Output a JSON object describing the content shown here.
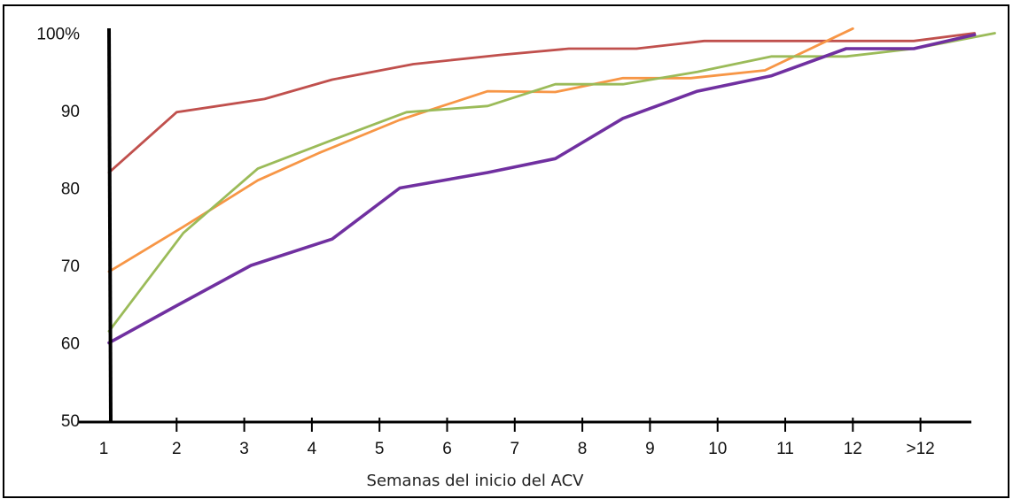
{
  "chart_data": {
    "type": "line",
    "title": "",
    "xlabel": "Semanas del inicio del ACV",
    "ylabel": "",
    "categories": [
      "1",
      "2",
      "3",
      "4",
      "5",
      "6",
      "7",
      "8",
      "9",
      "10",
      "11",
      "12",
      ">12"
    ],
    "y_tick_labels": [
      "50",
      "60",
      "70",
      "80",
      "90",
      "100%"
    ],
    "ylim": [
      50,
      100
    ],
    "grid": false,
    "legend": "none",
    "series": [
      {
        "color": "#c0504d",
        "points": [
          [
            1,
            82
          ],
          [
            2,
            89.8
          ],
          [
            3.3,
            91.5
          ],
          [
            4.3,
            94
          ],
          [
            5.5,
            96
          ],
          [
            6.8,
            97.2
          ],
          [
            7.8,
            98
          ],
          [
            8.8,
            98
          ],
          [
            9.8,
            99
          ],
          [
            10.8,
            99
          ],
          [
            11.9,
            99
          ],
          [
            12.9,
            99
          ],
          [
            13.8,
            100
          ]
        ]
      },
      {
        "color": "#f79646",
        "points": [
          [
            1,
            69.2
          ],
          [
            2.1,
            75
          ],
          [
            3.2,
            81
          ],
          [
            4.1,
            84.5
          ],
          [
            5.3,
            88.8
          ],
          [
            6.6,
            92.5
          ],
          [
            7.6,
            92.4
          ],
          [
            8.6,
            94.2
          ],
          [
            9.6,
            94.2
          ],
          [
            10.7,
            95.2
          ],
          [
            12,
            100.6
          ]
        ]
      },
      {
        "color": "#9bbb59",
        "points": [
          [
            1,
            61.5
          ],
          [
            2.1,
            74.2
          ],
          [
            3.2,
            82.5
          ],
          [
            4.3,
            86.2
          ],
          [
            5.4,
            89.8
          ],
          [
            6.6,
            90.6
          ],
          [
            7.6,
            93.4
          ],
          [
            8.6,
            93.4
          ],
          [
            9.7,
            95
          ],
          [
            10.8,
            97
          ],
          [
            11.9,
            97
          ],
          [
            12.9,
            98
          ],
          [
            14.1,
            100
          ]
        ]
      },
      {
        "color": "#7030a0",
        "points": [
          [
            1,
            60
          ],
          [
            2,
            64.8
          ],
          [
            3.1,
            70
          ],
          [
            4.3,
            73.4
          ],
          [
            5.3,
            80
          ],
          [
            6.6,
            82
          ],
          [
            7.6,
            83.8
          ],
          [
            8.6,
            89
          ],
          [
            9.7,
            92.5
          ],
          [
            10.8,
            94.5
          ],
          [
            11.9,
            98
          ],
          [
            12.9,
            98
          ],
          [
            13.8,
            99.8
          ]
        ]
      }
    ]
  }
}
